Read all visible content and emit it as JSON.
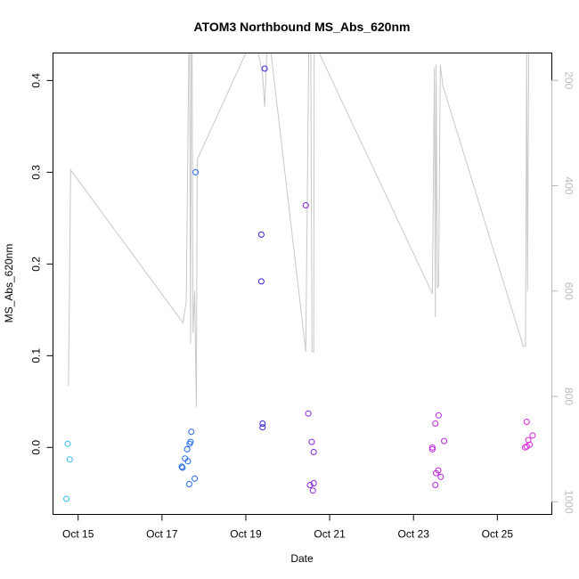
{
  "chart_data": {
    "type": "scatter",
    "title": "ATOM3 Northbound MS_Abs_620nm",
    "xlabel": "Date",
    "ylabel": "MS_Abs_620nm",
    "x_ticks": [
      "Oct 15",
      "Oct 17",
      "Oct 19",
      "Oct 21",
      "Oct 23",
      "Oct 25"
    ],
    "x_tick_days": [
      15,
      17,
      19,
      21,
      23,
      25
    ],
    "xlim_days": [
      14.4,
      26.3
    ],
    "y_ticks": [
      "0.0",
      "0.1",
      "0.2",
      "0.3",
      "0.4"
    ],
    "y_tick_values": [
      0.0,
      0.1,
      0.2,
      0.3,
      0.4
    ],
    "ylim": [
      -0.073,
      0.43
    ],
    "y2_ticks": [
      "200",
      "400",
      "600",
      "800",
      "1000"
    ],
    "y2_tick_values": [
      200,
      400,
      600,
      800,
      1000
    ],
    "y2lim_top_to_bottom": [
      148,
      1024
    ],
    "colors": {
      "axis": "#000000",
      "right_axis": "#bbbbbb",
      "background_line": "#c8c8c8"
    },
    "series": [
      {
        "color": "#33bbee",
        "points": [
          [
            14.75,
            0.004
          ],
          [
            14.8,
            -0.013
          ],
          [
            14.72,
            -0.056
          ]
        ]
      },
      {
        "color": "#2266ee",
        "points": [
          [
            17.8,
            0.3
          ],
          [
            17.7,
            0.017
          ],
          [
            17.68,
            0.006
          ],
          [
            17.66,
            0.004
          ],
          [
            17.6,
            -0.002
          ],
          [
            17.55,
            -0.012
          ],
          [
            17.47,
            -0.021
          ],
          [
            17.49,
            -0.022
          ],
          [
            17.62,
            -0.015
          ],
          [
            17.78,
            -0.034
          ],
          [
            17.65,
            -0.04
          ]
        ]
      },
      {
        "color": "#3322dd",
        "points": [
          [
            19.45,
            0.413
          ],
          [
            19.37,
            0.232
          ],
          [
            19.37,
            0.181
          ],
          [
            19.4,
            0.026
          ],
          [
            19.4,
            0.022
          ]
        ]
      },
      {
        "color": "#8822dd",
        "points": [
          [
            20.43,
            0.264
          ],
          [
            20.49,
            0.037
          ],
          [
            20.57,
            0.006
          ],
          [
            20.62,
            -0.005
          ],
          [
            20.53,
            -0.041
          ],
          [
            20.62,
            -0.039
          ],
          [
            20.6,
            -0.047
          ]
        ]
      },
      {
        "color": "#bb22dd",
        "points": [
          [
            23.6,
            0.035
          ],
          [
            23.52,
            0.026
          ],
          [
            23.73,
            0.007
          ],
          [
            23.45,
            0.0
          ],
          [
            23.45,
            -0.002
          ],
          [
            23.59,
            -0.025
          ],
          [
            23.54,
            -0.028
          ],
          [
            23.65,
            -0.032
          ],
          [
            23.52,
            -0.041
          ]
        ]
      },
      {
        "color": "#dd22dd",
        "points": [
          [
            25.7,
            0.028
          ],
          [
            25.84,
            0.013
          ],
          [
            25.74,
            0.008
          ],
          [
            25.77,
            0.003
          ],
          [
            25.66,
            0.0
          ],
          [
            25.7,
            0.001
          ]
        ]
      }
    ],
    "background_line": {
      "axis": "right",
      "points": [
        [
          14.77,
          780
        ],
        [
          14.82,
          370
        ],
        [
          17.5,
          660
        ],
        [
          17.58,
          620
        ],
        [
          17.64,
          148
        ],
        [
          17.66,
          148
        ],
        [
          17.68,
          700
        ],
        [
          17.7,
          148
        ],
        [
          17.72,
          148
        ],
        [
          17.74,
          680
        ],
        [
          17.78,
          600
        ],
        [
          17.82,
          820
        ],
        [
          17.84,
          350
        ],
        [
          17.9,
          340
        ],
        [
          19.0,
          148
        ],
        [
          19.3,
          148
        ],
        [
          19.4,
          190
        ],
        [
          19.45,
          250
        ],
        [
          19.5,
          148
        ],
        [
          19.6,
          148
        ],
        [
          20.43,
          715
        ],
        [
          20.5,
          148
        ],
        [
          20.55,
          148
        ],
        [
          20.58,
          715
        ],
        [
          20.62,
          715
        ],
        [
          20.63,
          148
        ],
        [
          20.75,
          148
        ],
        [
          23.45,
          605
        ],
        [
          23.5,
          175
        ],
        [
          23.52,
          650
        ],
        [
          23.54,
          170
        ],
        [
          23.57,
          595
        ],
        [
          23.6,
          590
        ],
        [
          23.64,
          170
        ],
        [
          23.7,
          210
        ],
        [
          25.62,
          705
        ],
        [
          25.67,
          705
        ],
        [
          25.7,
          148
        ],
        [
          25.72,
          600
        ],
        [
          25.75,
          148
        ],
        [
          25.85,
          148
        ]
      ]
    }
  }
}
